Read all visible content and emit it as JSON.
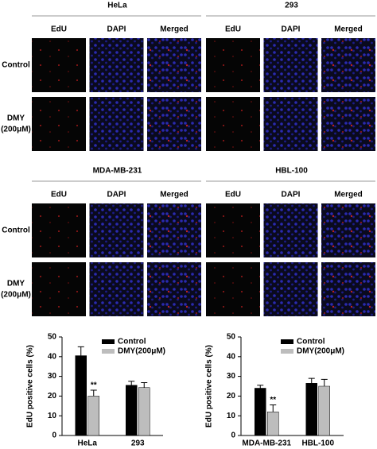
{
  "figure": {
    "blocks": [
      {
        "cell_lines": [
          {
            "name": "HeLa",
            "columns": [
              "EdU",
              "DAPI",
              "Merged"
            ]
          },
          {
            "name": "293",
            "columns": [
              "EdU",
              "DAPI",
              "Merged"
            ]
          }
        ],
        "rows": [
          [
            "Control"
          ],
          [
            "DMY",
            "(200μM)"
          ]
        ]
      },
      {
        "cell_lines": [
          {
            "name": "MDA-MB-231",
            "columns": [
              "EdU",
              "DAPI",
              "Merged"
            ]
          },
          {
            "name": "HBL-100",
            "columns": [
              "EdU",
              "DAPI",
              "Merged"
            ]
          }
        ],
        "rows": [
          [
            "Control"
          ],
          [
            "DMY",
            "(200μM)"
          ]
        ]
      }
    ]
  },
  "chart_data": [
    {
      "type": "bar",
      "y_label": "EdU positive cells (%)",
      "categories": [
        "HeLa",
        "293"
      ],
      "series": [
        {
          "name": "Control",
          "color": "#000000",
          "values": [
            40.5,
            25.5
          ],
          "errors": [
            4.5,
            2
          ]
        },
        {
          "name": "DMY(200μM)",
          "color": "#bdbdbd",
          "values": [
            20,
            24.3
          ],
          "errors": [
            3,
            2.5
          ]
        }
      ],
      "annotations": [
        "**"
      ],
      "ylim": [
        0,
        50
      ],
      "yticks": [
        0,
        10,
        20,
        30,
        40,
        50
      ],
      "legend": "top"
    },
    {
      "type": "bar",
      "y_label": "EdU positive cells (%)",
      "categories": [
        "MDA-MB-231",
        "HBL-100"
      ],
      "series": [
        {
          "name": "Control",
          "color": "#000000",
          "values": [
            24,
            26.5
          ],
          "errors": [
            1.5,
            2.5
          ]
        },
        {
          "name": "DMY(200μM)",
          "color": "#bdbdbd",
          "values": [
            12,
            25
          ],
          "errors": [
            3.5,
            3.5
          ]
        }
      ],
      "annotations": [
        "**"
      ],
      "ylim": [
        0,
        50
      ],
      "yticks": [
        0,
        10,
        20,
        30,
        40,
        50
      ],
      "legend": "top"
    }
  ]
}
